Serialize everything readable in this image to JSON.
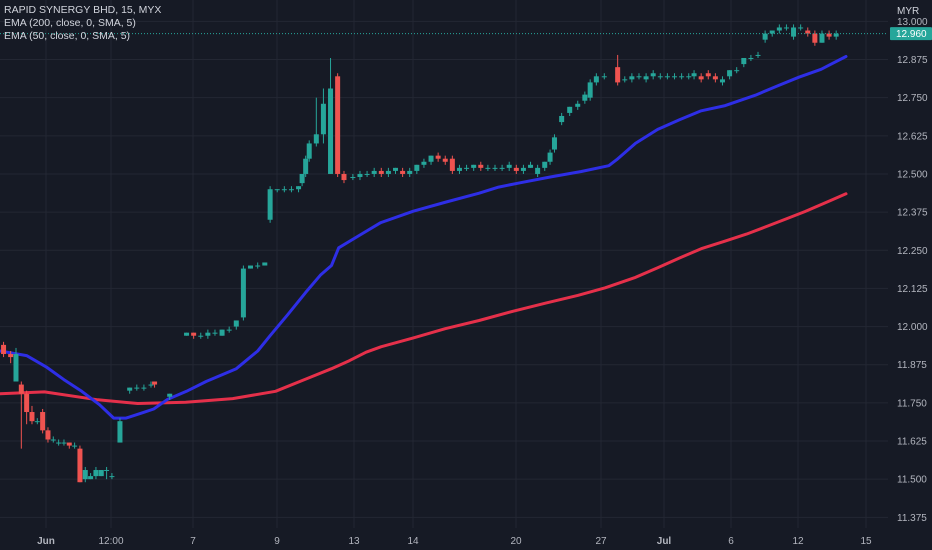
{
  "legend": {
    "symbol": "RAPID SYNERGY BHD, 15, MYX",
    "ema200": "EMA (200, close, 0, SMA, 5)",
    "ema50": "EMA (50, close, 0, SMA, 5)"
  },
  "currency": "MYR",
  "last_price_label": "12.960",
  "colors": {
    "background": "#161a25",
    "grid": "#232733",
    "up": "#26a69a",
    "down": "#ef5350",
    "ema50": "#2e2ee6",
    "ema200": "#e5304a",
    "price_tag": "#26a69a"
  },
  "chart_data": {
    "type": "line",
    "y_axis": {
      "ticks": [
        "13.000",
        "12.875",
        "12.750",
        "12.625",
        "12.500",
        "12.375",
        "12.250",
        "12.125",
        "12.000",
        "11.875",
        "11.750",
        "11.625",
        "11.500",
        "11.375"
      ],
      "range": [
        11.34,
        13.07
      ],
      "position": "right"
    },
    "x_axis": {
      "labels": [
        "Jun",
        "12:00",
        "7",
        "9",
        "13",
        "14",
        "20",
        "27",
        "Jul",
        "6",
        "12",
        "15"
      ],
      "bold_labels": [
        "Jun",
        "Jul"
      ]
    },
    "last_price": 12.96,
    "series": [
      {
        "name": "EMA (50, close, 0, SMA, 5)",
        "points": [
          [
            0,
            11.92
          ],
          [
            0.0315,
            11.905
          ],
          [
            0.0546,
            11.868
          ],
          [
            0.0756,
            11.826
          ],
          [
            0.0966,
            11.788
          ],
          [
            0.1176,
            11.744
          ],
          [
            0.1344,
            11.7
          ],
          [
            0.1491,
            11.7
          ],
          [
            0.1691,
            11.718
          ],
          [
            0.1817,
            11.73
          ],
          [
            0.1984,
            11.762
          ],
          [
            0.2205,
            11.788
          ],
          [
            0.2436,
            11.82
          ],
          [
            0.2793,
            11.862
          ],
          [
            0.3046,
            11.92
          ],
          [
            0.3193,
            11.97
          ],
          [
            0.3403,
            12.04
          ],
          [
            0.3614,
            12.112
          ],
          [
            0.3792,
            12.17
          ],
          [
            0.3918,
            12.2
          ],
          [
            0.4003,
            12.258
          ],
          [
            0.4255,
            12.3
          ],
          [
            0.4496,
            12.34
          ],
          [
            0.4885,
            12.378
          ],
          [
            0.5274,
            12.408
          ],
          [
            0.5663,
            12.437
          ],
          [
            0.5894,
            12.457
          ],
          [
            0.6146,
            12.471
          ],
          [
            0.6503,
            12.49
          ],
          [
            0.6871,
            12.508
          ],
          [
            0.7196,
            12.527
          ],
          [
            0.7291,
            12.547
          ],
          [
            0.7511,
            12.6
          ],
          [
            0.7774,
            12.646
          ],
          [
            0.8036,
            12.678
          ],
          [
            0.8288,
            12.707
          ],
          [
            0.8572,
            12.724
          ],
          [
            0.8929,
            12.758
          ],
          [
            0.9202,
            12.79
          ],
          [
            0.9443,
            12.817
          ],
          [
            0.9706,
            12.843
          ],
          [
            0.9811,
            12.858
          ],
          [
            1,
            12.885
          ]
        ]
      },
      {
        "name": "EMA (200, close, 0, SMA, 5)",
        "points": [
          [
            0,
            11.78
          ],
          [
            0.0525,
            11.786
          ],
          [
            0.1156,
            11.76
          ],
          [
            0.1628,
            11.748
          ],
          [
            0.2195,
            11.752
          ],
          [
            0.2751,
            11.764
          ],
          [
            0.3256,
            11.788
          ],
          [
            0.3614,
            11.828
          ],
          [
            0.3918,
            11.862
          ],
          [
            0.4129,
            11.888
          ],
          [
            0.4328,
            11.916
          ],
          [
            0.4507,
            11.934
          ],
          [
            0.4885,
            11.963
          ],
          [
            0.5263,
            11.993
          ],
          [
            0.5663,
            12.02
          ],
          [
            0.6062,
            12.05
          ],
          [
            0.6451,
            12.077
          ],
          [
            0.6829,
            12.102
          ],
          [
            0.7154,
            12.127
          ],
          [
            0.7501,
            12.16
          ],
          [
            0.7774,
            12.193
          ],
          [
            0.8036,
            12.225
          ],
          [
            0.8288,
            12.255
          ],
          [
            0.8572,
            12.28
          ],
          [
            0.8824,
            12.303
          ],
          [
            0.9033,
            12.325
          ],
          [
            0.9286,
            12.352
          ],
          [
            0.9517,
            12.377
          ],
          [
            0.9811,
            12.412
          ],
          [
            1,
            12.435
          ]
        ]
      }
    ],
    "candles": [
      [
        0.0042,
        11.94,
        11.91,
        11.95,
        11.9
      ],
      [
        0.0126,
        11.91,
        11.9,
        11.92,
        11.88
      ],
      [
        0.0189,
        11.82,
        11.91,
        11.93,
        11.82
      ],
      [
        0.0252,
        11.81,
        11.78,
        11.82,
        11.6
      ],
      [
        0.0315,
        11.78,
        11.72,
        11.79,
        11.68
      ],
      [
        0.0378,
        11.72,
        11.69,
        11.74,
        11.68
      ],
      [
        0.0441,
        11.69,
        11.69,
        11.7,
        11.68
      ],
      [
        0.0504,
        11.72,
        11.66,
        11.73,
        11.65
      ],
      [
        0.0567,
        11.66,
        11.63,
        11.67,
        11.62
      ],
      [
        0.063,
        11.63,
        11.63,
        11.64,
        11.62
      ],
      [
        0.0693,
        11.62,
        11.62,
        11.63,
        11.61
      ],
      [
        0.0756,
        11.62,
        11.62,
        11.63,
        11.61
      ],
      [
        0.0819,
        11.62,
        11.61,
        11.62,
        11.6
      ],
      [
        0.0882,
        11.61,
        11.61,
        11.62,
        11.6
      ],
      [
        0.0945,
        11.6,
        11.49,
        11.61,
        11.49
      ],
      [
        0.1008,
        11.5,
        11.53,
        11.54,
        11.49
      ],
      [
        0.1071,
        11.5,
        11.51,
        11.52,
        11.5
      ],
      [
        0.1134,
        11.51,
        11.53,
        11.54,
        11.5
      ],
      [
        0.1197,
        11.51,
        11.53,
        11.53,
        11.51
      ],
      [
        0.126,
        11.53,
        11.53,
        11.54,
        11.5
      ],
      [
        0.1323,
        11.51,
        11.51,
        11.52,
        11.5
      ],
      [
        0.1418,
        11.62,
        11.69,
        11.7,
        11.62
      ],
      [
        0.1533,
        11.79,
        11.8,
        11.8,
        11.78
      ],
      [
        0.1617,
        11.8,
        11.8,
        11.81,
        11.79
      ],
      [
        0.1701,
        11.8,
        11.8,
        11.81,
        11.79
      ],
      [
        0.1785,
        11.81,
        11.81,
        11.82,
        11.8
      ],
      [
        0.1827,
        11.82,
        11.81,
        11.82,
        11.8
      ],
      [
        0.2006,
        11.77,
        11.78,
        11.78,
        11.76
      ],
      [
        0.2205,
        11.97,
        11.98,
        11.98,
        11.97
      ],
      [
        0.2289,
        11.98,
        11.97,
        11.98,
        11.96
      ],
      [
        0.2373,
        11.97,
        11.97,
        11.98,
        11.96
      ],
      [
        0.2457,
        11.97,
        11.98,
        11.99,
        11.96
      ],
      [
        0.2541,
        11.98,
        11.98,
        11.99,
        11.97
      ],
      [
        0.2625,
        11.97,
        11.99,
        11.99,
        11.97
      ],
      [
        0.2709,
        11.99,
        11.99,
        12,
        11.98
      ],
      [
        0.2793,
        12,
        12.02,
        12.02,
        11.99
      ],
      [
        0.2877,
        12.03,
        12.19,
        12.2,
        12.02
      ],
      [
        0.2961,
        12.19,
        12.2,
        12.2,
        12.19
      ],
      [
        0.3046,
        12.2,
        12.2,
        12.21,
        12.19
      ],
      [
        0.313,
        12.2,
        12.21,
        12.21,
        12.2
      ],
      [
        0.3193,
        12.35,
        12.45,
        12.46,
        12.34
      ],
      [
        0.3277,
        12.45,
        12.45,
        12.45,
        12.44
      ],
      [
        0.3361,
        12.45,
        12.45,
        12.46,
        12.44
      ],
      [
        0.3445,
        12.45,
        12.45,
        12.46,
        12.44
      ],
      [
        0.3529,
        12.45,
        12.46,
        12.46,
        12.44
      ],
      [
        0.3571,
        12.47,
        12.5,
        12.5,
        12.46
      ],
      [
        0.3613,
        12.5,
        12.55,
        12.56,
        12.49
      ],
      [
        0.3655,
        12.55,
        12.6,
        12.61,
        12.54
      ],
      [
        0.3739,
        12.6,
        12.63,
        12.75,
        12.59
      ],
      [
        0.3823,
        12.63,
        12.73,
        12.78,
        12.6
      ],
      [
        0.3907,
        12.5,
        12.78,
        12.88,
        12.5
      ],
      [
        0.3991,
        12.82,
        12.5,
        12.83,
        12.49
      ],
      [
        0.4066,
        12.5,
        12.48,
        12.51,
        12.47
      ],
      [
        0.4171,
        12.49,
        12.49,
        12.5,
        12.48
      ],
      [
        0.4255,
        12.49,
        12.5,
        12.51,
        12.48
      ],
      [
        0.4339,
        12.5,
        12.5,
        12.51,
        12.49
      ],
      [
        0.4423,
        12.5,
        12.51,
        12.52,
        12.49
      ],
      [
        0.4507,
        12.51,
        12.5,
        12.52,
        12.49
      ],
      [
        0.4591,
        12.5,
        12.51,
        12.52,
        12.49
      ],
      [
        0.4675,
        12.51,
        12.52,
        12.52,
        12.5
      ],
      [
        0.4759,
        12.51,
        12.5,
        12.52,
        12.49
      ],
      [
        0.4843,
        12.5,
        12.51,
        12.52,
        12.49
      ],
      [
        0.4927,
        12.51,
        12.53,
        12.53,
        12.5
      ],
      [
        0.5011,
        12.53,
        12.54,
        12.55,
        12.52
      ],
      [
        0.5095,
        12.54,
        12.56,
        12.56,
        12.53
      ],
      [
        0.5179,
        12.56,
        12.55,
        12.57,
        12.54
      ],
      [
        0.5263,
        12.55,
        12.54,
        12.56,
        12.53
      ],
      [
        0.5347,
        12.55,
        12.51,
        12.56,
        12.5
      ],
      [
        0.5431,
        12.51,
        12.52,
        12.53,
        12.5
      ],
      [
        0.5515,
        12.52,
        12.52,
        12.53,
        12.51
      ],
      [
        0.5599,
        12.52,
        12.53,
        12.53,
        12.51
      ],
      [
        0.5683,
        12.53,
        12.52,
        12.54,
        12.51
      ],
      [
        0.5767,
        12.52,
        12.52,
        12.53,
        12.51
      ],
      [
        0.5851,
        12.52,
        12.52,
        12.53,
        12.51
      ],
      [
        0.5935,
        12.52,
        12.52,
        12.53,
        12.51
      ],
      [
        0.6019,
        12.52,
        12.53,
        12.54,
        12.51
      ],
      [
        0.6103,
        12.52,
        12.51,
        12.53,
        12.5
      ],
      [
        0.6187,
        12.51,
        12.52,
        12.53,
        12.5
      ],
      [
        0.6271,
        12.52,
        12.53,
        12.54,
        12.52
      ],
      [
        0.6355,
        12.5,
        12.52,
        12.53,
        12.49
      ],
      [
        0.6439,
        12.52,
        12.54,
        12.54,
        12.51
      ],
      [
        0.6502,
        12.54,
        12.57,
        12.58,
        12.53
      ],
      [
        0.6554,
        12.58,
        12.62,
        12.63,
        12.57
      ],
      [
        0.6639,
        12.67,
        12.69,
        12.7,
        12.66
      ],
      [
        0.6734,
        12.7,
        12.72,
        12.72,
        12.69
      ],
      [
        0.6829,
        12.72,
        12.73,
        12.74,
        12.71
      ],
      [
        0.6913,
        12.74,
        12.76,
        12.77,
        12.73
      ],
      [
        0.6976,
        12.75,
        12.8,
        12.81,
        12.74
      ],
      [
        0.7049,
        12.8,
        12.82,
        12.83,
        12.79
      ],
      [
        0.7143,
        12.82,
        12.82,
        12.83,
        12.81
      ],
      [
        0.7301,
        12.85,
        12.8,
        12.89,
        12.79
      ],
      [
        0.7385,
        12.81,
        12.81,
        12.82,
        12.8
      ],
      [
        0.7469,
        12.81,
        12.82,
        12.83,
        12.8
      ],
      [
        0.7553,
        12.82,
        12.82,
        12.83,
        12.81
      ],
      [
        0.7637,
        12.81,
        12.82,
        12.83,
        12.8
      ],
      [
        0.7721,
        12.82,
        12.83,
        12.84,
        12.81
      ],
      [
        0.7805,
        12.82,
        12.82,
        12.83,
        12.81
      ],
      [
        0.7889,
        12.82,
        12.82,
        12.83,
        12.81
      ],
      [
        0.7973,
        12.82,
        12.82,
        12.83,
        12.81
      ],
      [
        0.8057,
        12.82,
        12.82,
        12.83,
        12.81
      ],
      [
        0.8141,
        12.82,
        12.82,
        12.83,
        12.81
      ],
      [
        0.8204,
        12.82,
        12.83,
        12.84,
        12.81
      ],
      [
        0.8288,
        12.82,
        12.81,
        12.83,
        12.8
      ],
      [
        0.8372,
        12.83,
        12.82,
        12.84,
        12.81
      ],
      [
        0.8456,
        12.82,
        12.81,
        12.83,
        12.8
      ],
      [
        0.854,
        12.8,
        12.81,
        12.82,
        12.79
      ],
      [
        0.8624,
        12.82,
        12.84,
        12.84,
        12.81
      ],
      [
        0.8708,
        12.84,
        12.84,
        12.85,
        12.83
      ],
      [
        0.8792,
        12.86,
        12.88,
        12.88,
        12.85
      ],
      [
        0.8876,
        12.88,
        12.88,
        12.89,
        12.87
      ],
      [
        0.896,
        12.89,
        12.89,
        12.9,
        12.88
      ],
      [
        0.9044,
        12.94,
        12.96,
        12.97,
        12.93
      ],
      [
        0.9128,
        12.96,
        12.97,
        12.97,
        12.95
      ],
      [
        0.9212,
        12.97,
        12.98,
        12.99,
        12.96
      ],
      [
        0.9296,
        12.98,
        12.98,
        12.99,
        12.97
      ],
      [
        0.938,
        12.95,
        12.98,
        12.99,
        12.94
      ],
      [
        0.9464,
        12.98,
        12.98,
        12.99,
        12.97
      ],
      [
        0.9548,
        12.97,
        12.96,
        12.98,
        12.95
      ],
      [
        0.9632,
        12.96,
        12.93,
        12.97,
        12.92
      ],
      [
        0.9716,
        12.93,
        12.96,
        12.97,
        12.93
      ],
      [
        0.98,
        12.96,
        12.95,
        12.97,
        12.94
      ],
      [
        0.9884,
        12.95,
        12.96,
        12.97,
        12.94
      ]
    ]
  }
}
